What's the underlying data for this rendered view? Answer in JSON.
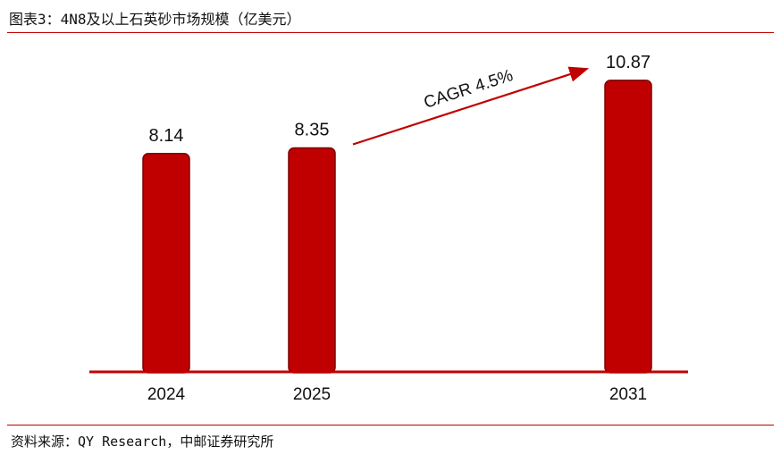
{
  "header": {
    "title": "图表3：4N8及以上石英砂市场规模（亿美元）"
  },
  "footer": {
    "source": "资料来源：QY Research，中邮证券研究所"
  },
  "colors": {
    "bar": "#c00000",
    "bar_edge": "#7a0000",
    "axis": "#c00000",
    "rule": "#c00000",
    "text": "#111111"
  },
  "chart_data": {
    "type": "bar",
    "title": "4N8及以上石英砂市场规模（亿美元）",
    "categories": [
      "2024",
      "2025",
      "2031"
    ],
    "values": [
      8.14,
      8.35,
      10.87
    ],
    "ylim": [
      0,
      12
    ],
    "xlabel": "",
    "ylabel": "",
    "grid": false,
    "annotations": [
      {
        "text": "CAGR 4.5%",
        "from": "2025",
        "to": "2031",
        "arrow": true
      }
    ]
  }
}
